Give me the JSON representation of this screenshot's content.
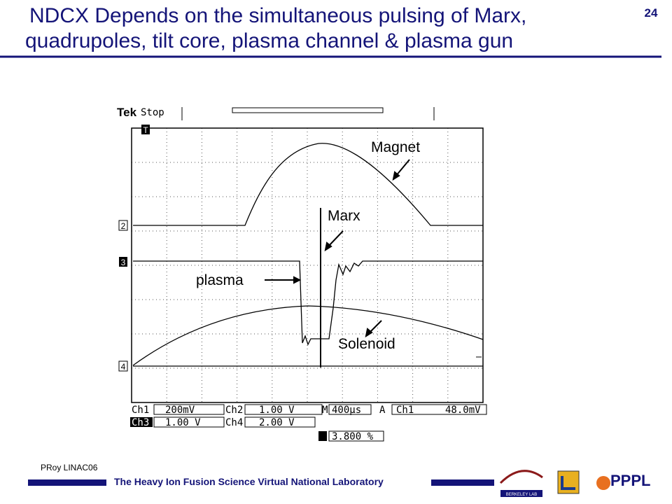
{
  "header": {
    "title_lines": [
      "NDCX Depends on the simultaneous pulsing of Marx,",
      "quadrupoles, tilt core, plasma channel & plasma gun"
    ],
    "page_number": "24"
  },
  "scope": {
    "brand": "Tek",
    "status": "Stop",
    "markers": [
      "T",
      "2",
      "3",
      "4"
    ],
    "annotations": {
      "magnet": "Magnet",
      "marx": "Marx",
      "plasma": "plasma",
      "solenoid": "Solenoid"
    },
    "readout": {
      "row1": [
        "Ch1",
        "200mV",
        "Ch2",
        "1.00 V",
        "M",
        "400µs",
        "A",
        "Ch1",
        "48.0mV"
      ],
      "row2": [
        "Ch3",
        "1.00 V",
        "Ch4",
        "2.00 V"
      ],
      "trigger_position": "3.800 %"
    }
  },
  "footer": {
    "author": "PRoy LINAC06",
    "lab": "The Heavy Ion Fusion Science Virtual National Laboratory",
    "logos": [
      "BERKELEY LAB",
      "PPPL"
    ]
  }
}
